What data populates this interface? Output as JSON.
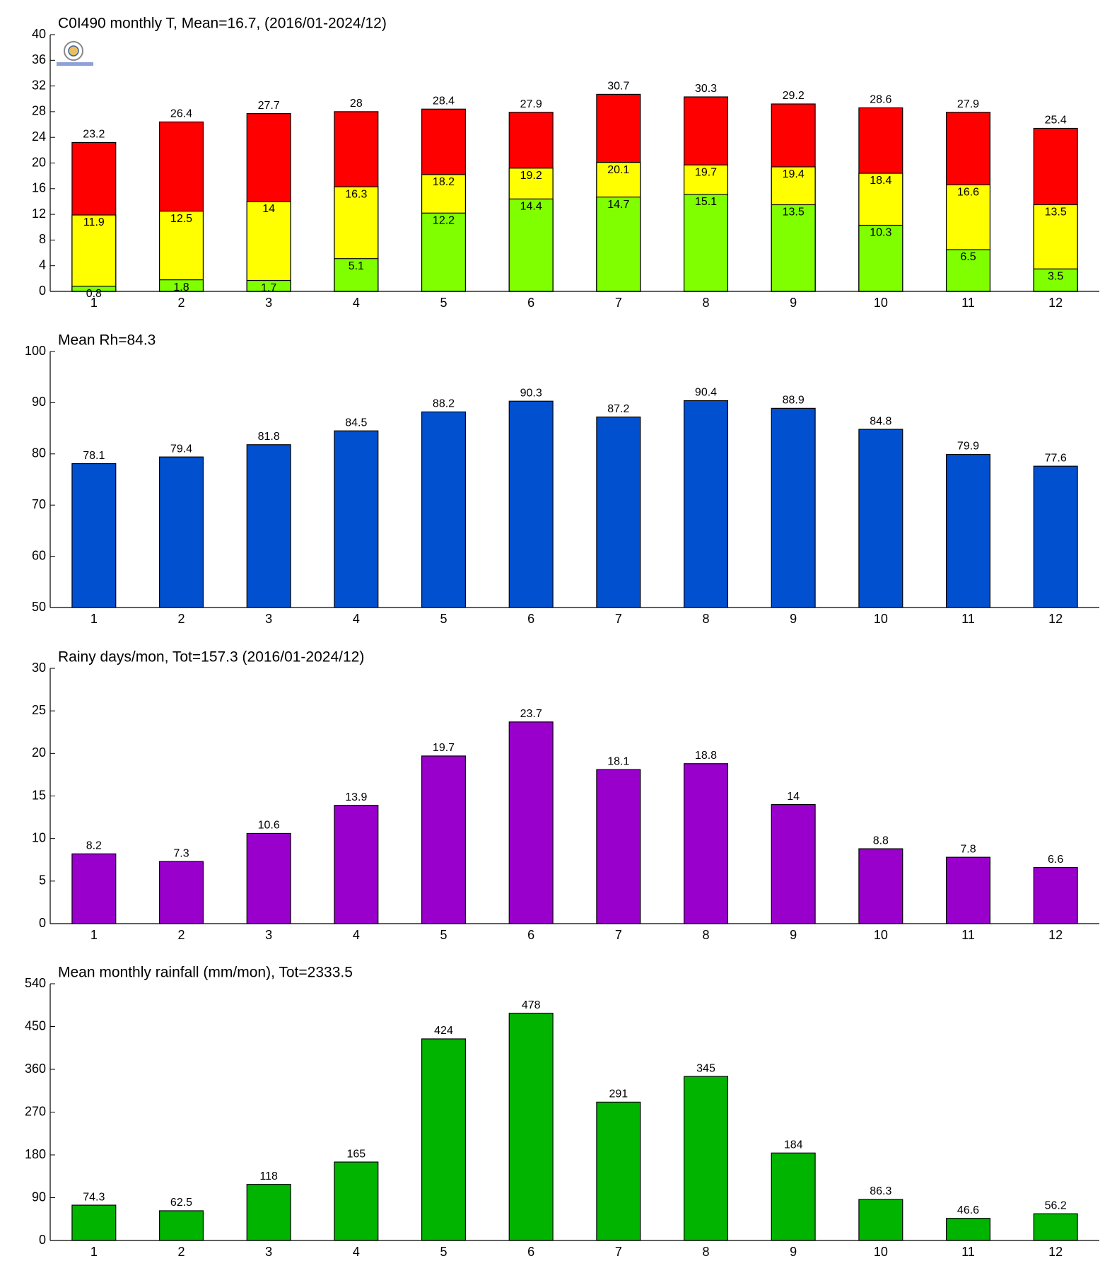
{
  "chart_data": [
    {
      "type": "bar",
      "title": "C0I490 monthly T, Mean=16.7, (2016/01-2024/12)",
      "categories": [
        "1",
        "2",
        "3",
        "4",
        "5",
        "6",
        "7",
        "8",
        "9",
        "10",
        "11",
        "12"
      ],
      "series": [
        {
          "color": "#ff0000",
          "values": [
            23.2,
            26.4,
            27.7,
            28,
            28.4,
            27.9,
            30.7,
            30.3,
            29.2,
            28.6,
            27.9,
            25.4
          ]
        },
        {
          "color": "#ffff00",
          "values": [
            11.9,
            12.5,
            14,
            16.3,
            18.2,
            19.2,
            20.1,
            19.7,
            19.4,
            18.4,
            16.6,
            13.5
          ]
        },
        {
          "color": "#80ff00",
          "values": [
            0.8,
            1.8,
            1.7,
            5.1,
            12.2,
            14.4,
            14.7,
            15.1,
            13.5,
            10.3,
            6.5,
            3.5
          ]
        }
      ],
      "ylim": [
        0,
        40
      ],
      "yticks": [
        0,
        4,
        8,
        12,
        16,
        20,
        24,
        28,
        32,
        36,
        40
      ]
    },
    {
      "type": "bar",
      "title": "Mean Rh=84.3",
      "categories": [
        "1",
        "2",
        "3",
        "4",
        "5",
        "6",
        "7",
        "8",
        "9",
        "10",
        "11",
        "12"
      ],
      "series": [
        {
          "color": "#0050d0",
          "values": [
            78.1,
            79.4,
            81.8,
            84.5,
            88.2,
            90.3,
            87.2,
            90.4,
            88.9,
            84.8,
            79.9,
            77.6
          ]
        }
      ],
      "ylim": [
        50,
        100
      ],
      "yticks": [
        50,
        60,
        70,
        80,
        90,
        100
      ]
    },
    {
      "type": "bar",
      "title": "Rainy days/mon, Tot=157.3 (2016/01-2024/12)",
      "categories": [
        "1",
        "2",
        "3",
        "4",
        "5",
        "6",
        "7",
        "8",
        "9",
        "10",
        "11",
        "12"
      ],
      "series": [
        {
          "color": "#9900cc",
          "values": [
            8.2,
            7.3,
            10.6,
            13.9,
            19.7,
            23.7,
            18.1,
            18.8,
            14,
            8.8,
            7.8,
            6.6
          ]
        }
      ],
      "ylim": [
        0,
        30
      ],
      "yticks": [
        0,
        5,
        10,
        15,
        20,
        25,
        30
      ]
    },
    {
      "type": "bar",
      "title": "Mean monthly rainfall (mm/mon), Tot=2333.5",
      "categories": [
        "1",
        "2",
        "3",
        "4",
        "5",
        "6",
        "7",
        "8",
        "9",
        "10",
        "11",
        "12"
      ],
      "series": [
        {
          "color": "#00b400",
          "values": [
            74.3,
            62.5,
            118,
            165,
            424,
            478,
            291,
            345,
            184,
            86.3,
            46.6,
            56.2
          ]
        }
      ],
      "ylim": [
        0,
        540
      ],
      "yticks": [
        0,
        90,
        180,
        270,
        360,
        450,
        540
      ]
    }
  ]
}
